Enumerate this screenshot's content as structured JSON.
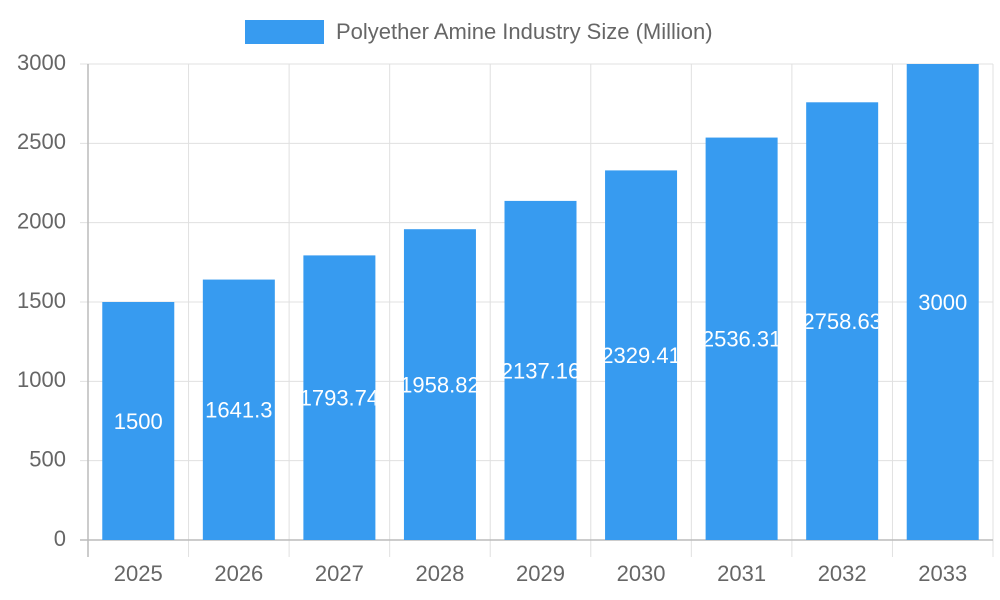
{
  "chart_data": {
    "type": "bar",
    "legend_label": "Polyether Amine Industry Size (Million)",
    "categories": [
      "2025",
      "2026",
      "2027",
      "2028",
      "2029",
      "2030",
      "2031",
      "2032",
      "2033"
    ],
    "values": [
      1500,
      1641.3,
      1793.74,
      1958.82,
      2137.16,
      2329.41,
      2536.31,
      2758.63,
      3000
    ],
    "color": "#379bf0",
    "ylim": [
      0,
      3000
    ],
    "yticks": [
      0,
      500,
      1000,
      1500,
      2000,
      2500,
      3000
    ],
    "grid": true
  }
}
